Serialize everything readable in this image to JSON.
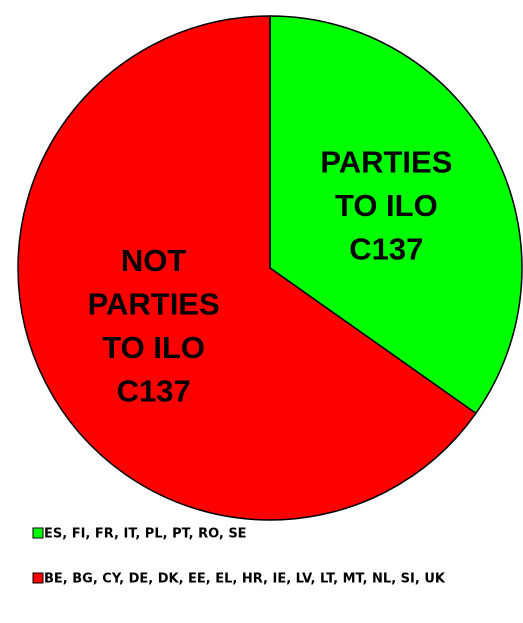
{
  "chart_data": {
    "type": "pie",
    "categories": [
      "ES, FI, FR, IT, PL, PT, RO, SE",
      "BE, BG, CY, DE, DK, EE, EL, HR, IE, LV, LT, MT, NL, SI, UK"
    ],
    "values": [
      8,
      15
    ],
    "colors": [
      "#00ff00",
      "#ff0000"
    ],
    "slice_labels": [
      [
        "PARTIES",
        "TO ILO",
        "C137"
      ],
      [
        "NOT",
        "PARTIES",
        "TO ILO",
        "C137"
      ]
    ],
    "legend": "bottom"
  }
}
